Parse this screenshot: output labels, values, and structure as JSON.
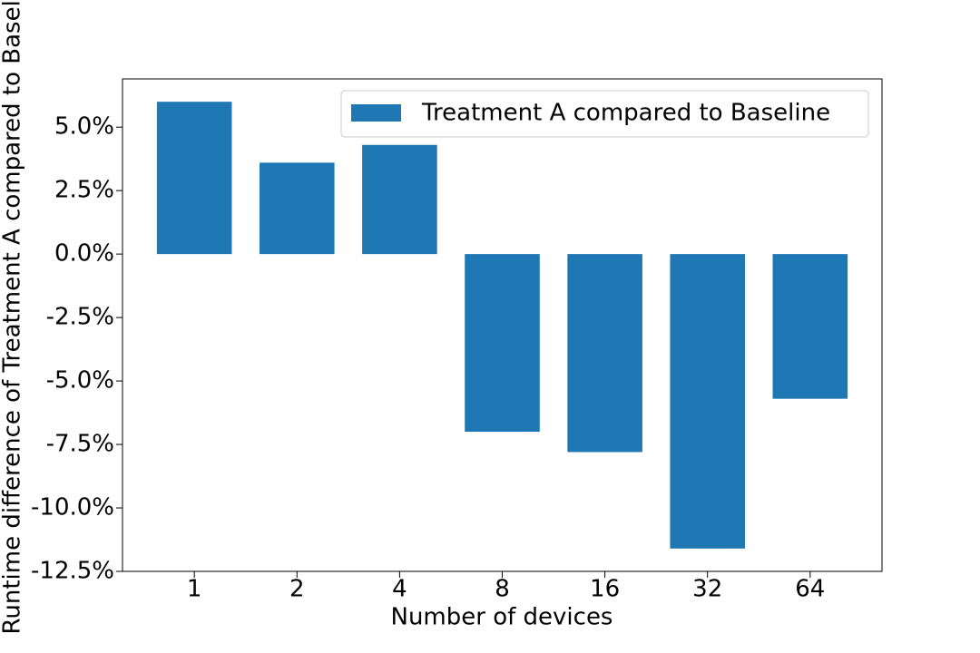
{
  "chart_data": {
    "type": "bar",
    "categories": [
      "1",
      "2",
      "4",
      "8",
      "16",
      "32",
      "64"
    ],
    "series": [
      {
        "name": "Treatment A compared to Baseline",
        "color": "#1f77b4",
        "values": [
          6.0,
          3.6,
          4.3,
          -7.0,
          -7.8,
          -11.6,
          -5.7
        ]
      }
    ],
    "x_label": "Number of devices",
    "y_label": "Runtime difference of Treatment A compared to Baseline",
    "ylim": [
      -12.5,
      6.9
    ],
    "yticks": [
      {
        "value": -12.5,
        "label": "-12.5%"
      },
      {
        "value": -10,
        "label": "-10.0%"
      },
      {
        "value": -7.5,
        "label": "-7.5%"
      },
      {
        "value": -5,
        "label": "-5.0%"
      },
      {
        "value": -2.5,
        "label": "-2.5%"
      },
      {
        "value": 0,
        "label": "0.0%"
      },
      {
        "value": 2.5,
        "label": "2.5%"
      },
      {
        "value": 5,
        "label": "5.0%"
      }
    ],
    "legend": "upper right",
    "grid": false
  }
}
